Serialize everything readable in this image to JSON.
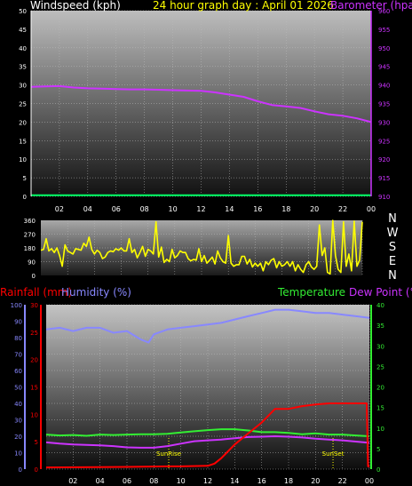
{
  "colors": {
    "background": "#000000",
    "grid": "#bbbbbb",
    "windspeed": "#00ff66",
    "barometer": "#cc33ff",
    "title": "#ffff00",
    "direction": "#ffff00",
    "rainfall": "#ff0000",
    "humidity": "#8888ff",
    "temperature": "#33ee33",
    "dewpoint": "#cc33ff",
    "text": "#ffffff"
  },
  "chart_data": [
    {
      "type": "line",
      "id": "wind-baro",
      "title": "24 hour graph day : April 01 2026",
      "left_axis_label": "Windspeed (kph)",
      "right_axis_label": "Barometer (hpa)",
      "left_ylim": [
        0,
        50
      ],
      "left_ticks": [
        "0",
        "5",
        "10",
        "15",
        "20",
        "25",
        "30",
        "35",
        "40",
        "45",
        "50"
      ],
      "right_ylim": [
        910,
        960
      ],
      "right_ticks": [
        "910",
        "915",
        "920",
        "925",
        "930",
        "935",
        "940",
        "945",
        "950",
        "955",
        "960"
      ],
      "xlim": [
        0,
        24
      ],
      "x_ticks": [
        "02",
        "04",
        "06",
        "08",
        "10",
        "12",
        "14",
        "16",
        "18",
        "20",
        "22",
        "00"
      ],
      "grid": true,
      "series": [
        {
          "name": "Windspeed (kph)",
          "axis": "left",
          "x": [
            0,
            24
          ],
          "y": [
            0.3,
            0.3
          ]
        },
        {
          "name": "Barometer (hpa)",
          "axis": "right",
          "x": [
            0,
            1,
            2,
            3,
            4,
            5,
            6,
            7,
            8,
            9,
            10,
            11,
            12,
            13,
            14,
            15,
            16,
            17,
            18,
            19,
            20,
            21,
            22,
            23,
            24
          ],
          "y": [
            939.5,
            939.6,
            939.7,
            939.3,
            939.1,
            939.0,
            938.9,
            938.8,
            938.8,
            938.7,
            938.6,
            938.5,
            938.4,
            938.0,
            937.4,
            936.8,
            935.6,
            934.6,
            934.2,
            933.8,
            932.9,
            932.1,
            931.7,
            931.0,
            930.0
          ]
        }
      ]
    },
    {
      "type": "line",
      "id": "wind-direction",
      "ylim": [
        0,
        360
      ],
      "y_ticks": [
        "0",
        "90",
        "180",
        "270",
        "360"
      ],
      "compass_labels": [
        "N",
        "W",
        "S",
        "E",
        "N"
      ],
      "xlim": [
        0,
        24
      ],
      "grid": true,
      "series": [
        {
          "name": "Wind direction",
          "x": [
            0.0,
            0.2,
            0.4,
            0.6,
            0.8,
            1.0,
            1.2,
            1.4,
            1.6,
            1.8,
            2.0,
            2.2,
            2.4,
            2.6,
            2.8,
            3.0,
            3.2,
            3.4,
            3.6,
            3.8,
            4.0,
            4.2,
            4.4,
            4.6,
            4.8,
            5.0,
            5.2,
            5.4,
            5.6,
            5.8,
            6.0,
            6.2,
            6.4,
            6.6,
            6.8,
            7.0,
            7.2,
            7.4,
            7.6,
            7.8,
            8.0,
            8.2,
            8.4,
            8.6,
            8.8,
            9.0,
            9.2,
            9.4,
            9.6,
            9.8,
            10.0,
            10.2,
            10.4,
            10.6,
            10.8,
            11.0,
            11.2,
            11.4,
            11.6,
            11.8,
            12.0,
            12.2,
            12.4,
            12.6,
            12.8,
            13.0,
            13.2,
            13.4,
            13.6,
            13.8,
            14.0,
            14.2,
            14.4,
            14.6,
            14.8,
            15.0,
            15.2,
            15.4,
            15.6,
            15.8,
            16.0,
            16.2,
            16.4,
            16.6,
            16.8,
            17.0,
            17.2,
            17.4,
            17.6,
            17.8,
            18.0,
            18.2,
            18.4,
            18.6,
            18.8,
            19.0,
            19.2,
            19.4,
            19.6,
            19.8,
            20.0,
            20.2,
            20.4,
            20.6,
            20.8,
            21.0,
            21.2,
            21.4,
            21.6,
            21.8,
            22.0,
            22.2,
            22.4,
            22.6,
            22.8,
            23.0,
            23.2,
            23.4,
            23.6,
            23.8,
            24.0
          ],
          "y": [
            165,
            170,
            240,
            160,
            175,
            150,
            180,
            130,
            60,
            200,
            160,
            150,
            140,
            175,
            170,
            165,
            210,
            190,
            250,
            170,
            140,
            165,
            150,
            110,
            120,
            150,
            160,
            155,
            175,
            165,
            180,
            160,
            160,
            240,
            150,
            170,
            115,
            150,
            190,
            125,
            170,
            160,
            140,
            350,
            120,
            185,
            85,
            105,
            90,
            170,
            115,
            130,
            160,
            150,
            150,
            110,
            95,
            105,
            100,
            175,
            90,
            130,
            80,
            100,
            120,
            75,
            160,
            115,
            90,
            80,
            260,
            80,
            60,
            70,
            70,
            125,
            125,
            75,
            105,
            55,
            80,
            60,
            80,
            30,
            90,
            70,
            100,
            110,
            50,
            90,
            60,
            70,
            90,
            60,
            90,
            30,
            70,
            40,
            20,
            70,
            90,
            55,
            40,
            60,
            330,
            130,
            180,
            20,
            10,
            360,
            130,
            40,
            20,
            350,
            60,
            140,
            30,
            355,
            60,
            100,
            350
          ]
        }
      ]
    },
    {
      "type": "line",
      "id": "rain-hum-temp",
      "left_axis_label_1": "Rainfall (mm)",
      "left_axis_label_2": "Humidity (%)",
      "right_axis_label_1": "Temperature",
      "right_axis_label_2": "Dew Point (°C)",
      "humidity_ylim": [
        0,
        100
      ],
      "humidity_ticks": [
        "0",
        "10",
        "20",
        "30",
        "40",
        "50",
        "60",
        "70",
        "80",
        "90",
        "100"
      ],
      "rain_ylim": [
        0,
        30
      ],
      "rain_ticks": [
        "0",
        "5",
        "10",
        "15",
        "20",
        "25",
        "30"
      ],
      "temp_ylim": [
        0,
        40
      ],
      "temp_ticks": [
        "0",
        "5",
        "10",
        "15",
        "20",
        "25",
        "30",
        "35",
        "40"
      ],
      "xlim": [
        0,
        24
      ],
      "x_ticks": [
        "02",
        "04",
        "06",
        "08",
        "10",
        "12",
        "14",
        "16",
        "18",
        "20",
        "22",
        "00"
      ],
      "annotations": [
        {
          "text": "SunRise",
          "x": 9.1
        },
        {
          "text": "SunSet",
          "x": 21.3
        }
      ],
      "grid": true,
      "series": [
        {
          "name": "Humidity (%)",
          "axis": "humidity",
          "x": [
            0,
            1,
            2,
            3,
            4,
            5,
            6,
            7,
            7.6,
            8,
            9,
            10,
            11,
            12,
            13,
            14,
            15,
            16,
            17,
            18,
            19,
            20,
            21,
            22,
            23,
            24
          ],
          "y": [
            85,
            86,
            84,
            86,
            86,
            83,
            84,
            79,
            77,
            82,
            85,
            86,
            87,
            88,
            89,
            91,
            93,
            95,
            97,
            97,
            96,
            95,
            95,
            94,
            93,
            92
          ]
        },
        {
          "name": "Rainfall (mm)",
          "axis": "rain",
          "x": [
            0,
            6,
            9,
            10,
            12,
            12.5,
            13,
            14,
            15,
            16,
            17,
            18,
            19,
            20,
            21,
            23.8,
            23.9,
            24
          ],
          "y": [
            0.3,
            0.4,
            0.5,
            0.5,
            0.6,
            1.0,
            2.0,
            4.5,
            6.5,
            8.5,
            11.0,
            11.0,
            11.5,
            11.8,
            12.0,
            12.0,
            0.5,
            0.5
          ]
        },
        {
          "name": "Temperature",
          "axis": "temp",
          "x": [
            0,
            1,
            2,
            3,
            4,
            5,
            6,
            7,
            8,
            9,
            10,
            11,
            12,
            13,
            14,
            15,
            16,
            17,
            18,
            19,
            20,
            21,
            22,
            23,
            24
          ],
          "y": [
            8.4,
            8.2,
            8.3,
            8.1,
            8.4,
            8.3,
            8.4,
            8.5,
            8.5,
            8.6,
            8.9,
            9.2,
            9.5,
            9.7,
            9.7,
            9.4,
            9.0,
            9.0,
            8.8,
            8.5,
            8.7,
            8.4,
            8.4,
            8.2,
            8.0
          ]
        },
        {
          "name": "Dew Point (°C)",
          "axis": "temp",
          "x": [
            0,
            1,
            2,
            3,
            4,
            5,
            6,
            7,
            8,
            9,
            10,
            11,
            12,
            13,
            14,
            15,
            16,
            17,
            18,
            19,
            20,
            21,
            22,
            23,
            24
          ],
          "y": [
            6.5,
            6.2,
            6.0,
            5.9,
            5.8,
            5.6,
            5.3,
            5.2,
            5.2,
            5.6,
            6.2,
            6.8,
            7.0,
            7.2,
            7.5,
            7.8,
            7.9,
            8.0,
            7.9,
            7.7,
            7.4,
            7.2,
            7.0,
            6.7,
            6.4
          ]
        }
      ]
    }
  ]
}
